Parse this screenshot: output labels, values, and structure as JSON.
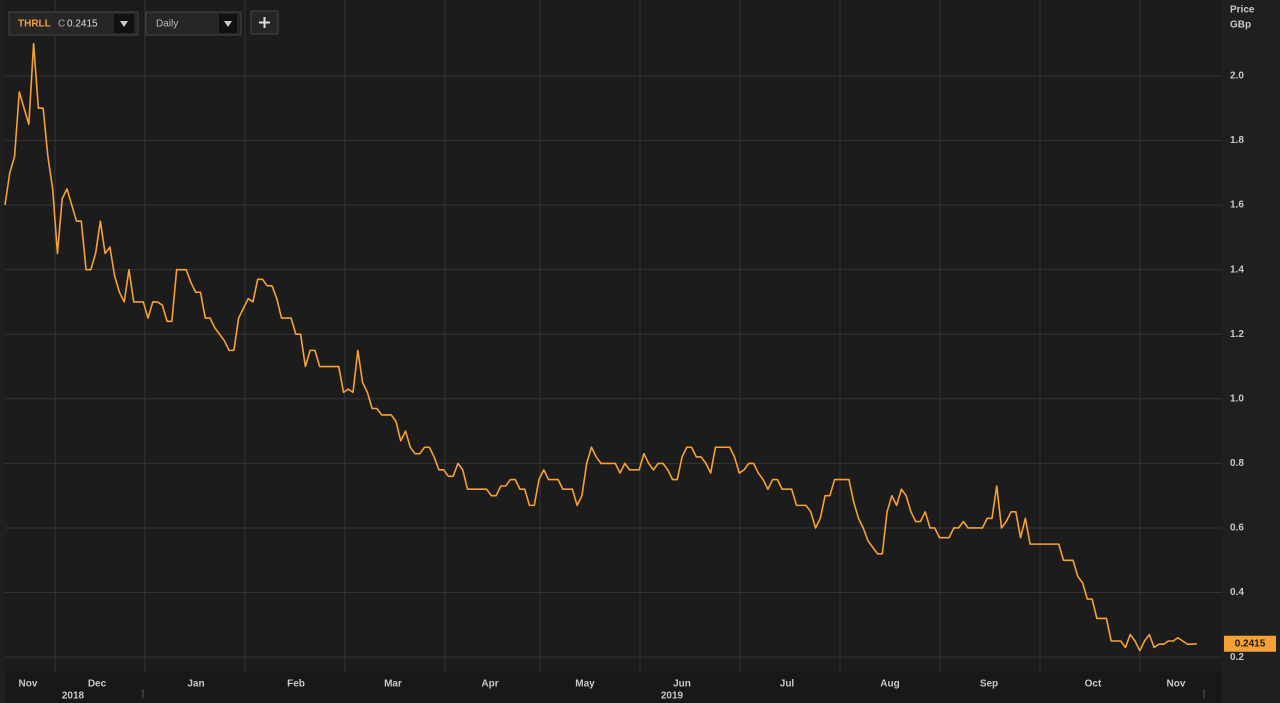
{
  "chart_data": {
    "type": "line",
    "ticker": "THRLL",
    "close_prefix": "C",
    "close": 0.2415,
    "interval": "Daily",
    "y_label_1": "Price",
    "y_label_2": "GBp",
    "x_labels": [
      "Nov",
      "Dec",
      "Jan",
      "Feb",
      "Mar",
      "Apr",
      "May",
      "Jun",
      "Jul",
      "Aug",
      "Sep",
      "Oct",
      "Nov"
    ],
    "year_labels": [
      "2018",
      "2019"
    ],
    "color": "#f7a035",
    "ylim": [
      0.154,
      2.235
    ],
    "yticks": [
      0.2,
      0.4,
      0.6,
      0.8,
      {
        "value": 1,
        "label": "1.0"
      },
      1.2,
      1.4,
      1.6,
      1.8,
      {
        "value": 2,
        "label": "2.0"
      }
    ],
    "grid": true,
    "values": [
      1.6,
      1.7,
      1.75,
      1.95,
      1.9,
      1.85,
      2.1,
      1.9,
      1.9,
      1.75,
      1.65,
      1.45,
      1.62,
      1.65,
      1.6,
      1.55,
      1.55,
      1.4,
      1.4,
      1.45,
      1.55,
      1.45,
      1.47,
      1.38,
      1.33,
      1.3,
      1.4,
      1.3,
      1.3,
      1.3,
      1.25,
      1.3,
      1.3,
      1.29,
      1.24,
      1.24,
      1.4,
      1.4,
      1.4,
      1.36,
      1.33,
      1.33,
      1.25,
      1.25,
      1.22,
      1.2,
      1.18,
      1.15,
      1.15,
      1.25,
      1.28,
      1.31,
      1.3,
      1.37,
      1.37,
      1.35,
      1.35,
      1.31,
      1.25,
      1.25,
      1.25,
      1.2,
      1.2,
      1.1,
      1.15,
      1.15,
      1.1,
      1.1,
      1.1,
      1.1,
      1.1,
      1.02,
      1.03,
      1.02,
      1.15,
      1.05,
      1.02,
      0.97,
      0.97,
      0.95,
      0.95,
      0.95,
      0.93,
      0.87,
      0.9,
      0.85,
      0.83,
      0.83,
      0.85,
      0.85,
      0.82,
      0.78,
      0.78,
      0.76,
      0.76,
      0.8,
      0.78,
      0.72,
      0.72,
      0.72,
      0.72,
      0.72,
      0.7,
      0.7,
      0.73,
      0.73,
      0.75,
      0.75,
      0.72,
      0.72,
      0.67,
      0.67,
      0.75,
      0.78,
      0.75,
      0.75,
      0.75,
      0.72,
      0.72,
      0.72,
      0.67,
      0.7,
      0.8,
      0.85,
      0.82,
      0.8,
      0.8,
      0.8,
      0.8,
      0.77,
      0.8,
      0.78,
      0.78,
      0.78,
      0.83,
      0.8,
      0.78,
      0.8,
      0.8,
      0.78,
      0.75,
      0.75,
      0.82,
      0.85,
      0.85,
      0.82,
      0.82,
      0.8,
      0.77,
      0.85,
      0.85,
      0.85,
      0.85,
      0.82,
      0.77,
      0.78,
      0.8,
      0.8,
      0.77,
      0.75,
      0.72,
      0.75,
      0.75,
      0.72,
      0.72,
      0.72,
      0.67,
      0.67,
      0.67,
      0.65,
      0.6,
      0.63,
      0.7,
      0.7,
      0.75,
      0.75,
      0.75,
      0.75,
      0.68,
      0.63,
      0.6,
      0.56,
      0.54,
      0.52,
      0.52,
      0.65,
      0.7,
      0.67,
      0.72,
      0.7,
      0.65,
      0.62,
      0.62,
      0.65,
      0.6,
      0.6,
      0.57,
      0.57,
      0.57,
      0.6,
      0.6,
      0.62,
      0.6,
      0.6,
      0.6,
      0.6,
      0.63,
      0.63,
      0.73,
      0.6,
      0.62,
      0.65,
      0.65,
      0.57,
      0.63,
      0.55,
      0.55,
      0.55,
      0.55,
      0.55,
      0.55,
      0.55,
      0.5,
      0.5,
      0.5,
      0.45,
      0.43,
      0.38,
      0.38,
      0.32,
      0.32,
      0.32,
      0.25,
      0.25,
      0.25,
      0.23,
      0.27,
      0.25,
      0.22,
      0.25,
      0.27,
      0.23,
      0.24,
      0.24,
      0.25,
      0.25,
      0.26,
      0.25,
      0.24,
      0.24,
      0.2415
    ]
  }
}
